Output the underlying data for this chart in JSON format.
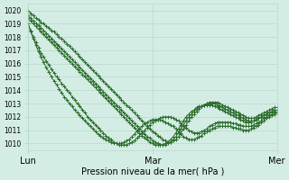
{
  "title": "Pression niveau de la mer( hPa )",
  "bg_color": "#d4ede4",
  "grid_color": "#b8d8cc",
  "line_color": "#2d6e2d",
  "ylim": [
    1009.5,
    1020.5
  ],
  "yticks": [
    1010,
    1011,
    1012,
    1013,
    1014,
    1015,
    1016,
    1017,
    1018,
    1019,
    1020
  ],
  "xtick_labels": [
    "Lun",
    "Mar",
    "Mer"
  ],
  "xtick_positions": [
    0,
    48,
    96
  ],
  "total_points": 97,
  "series": [
    [
      1020.0,
      1019.8,
      1019.6,
      1019.4,
      1019.3,
      1019.1,
      1019.0,
      1018.8,
      1018.7,
      1018.5,
      1018.4,
      1018.2,
      1018.0,
      1017.9,
      1017.7,
      1017.5,
      1017.3,
      1017.1,
      1016.9,
      1016.7,
      1016.5,
      1016.3,
      1016.1,
      1015.9,
      1015.7,
      1015.5,
      1015.3,
      1015.1,
      1014.9,
      1014.7,
      1014.5,
      1014.3,
      1014.1,
      1013.9,
      1013.7,
      1013.5,
      1013.3,
      1013.1,
      1012.9,
      1012.7,
      1012.5,
      1012.3,
      1012.1,
      1011.9,
      1011.7,
      1011.5,
      1011.3,
      1011.1,
      1010.9,
      1010.8,
      1010.6,
      1010.5,
      1010.3,
      1010.2,
      1010.1,
      1010.1,
      1010.2,
      1010.3,
      1010.5,
      1010.8,
      1011.1,
      1011.4,
      1011.7,
      1012.0,
      1012.2,
      1012.4,
      1012.6,
      1012.8,
      1012.9,
      1013.0,
      1013.1,
      1013.1,
      1013.1,
      1013.1,
      1013.0,
      1012.9,
      1012.8,
      1012.7,
      1012.6,
      1012.5,
      1012.4,
      1012.3,
      1012.2,
      1012.1,
      1012.0,
      1011.9,
      1011.9,
      1011.9,
      1012.0,
      1012.1,
      1012.2,
      1012.3,
      1012.4,
      1012.5,
      1012.6,
      1012.7,
      1012.7
    ],
    [
      1019.6,
      1019.4,
      1019.2,
      1019.0,
      1018.9,
      1018.7,
      1018.5,
      1018.3,
      1018.1,
      1017.9,
      1017.7,
      1017.5,
      1017.3,
      1017.1,
      1016.9,
      1016.7,
      1016.5,
      1016.3,
      1016.1,
      1015.9,
      1015.7,
      1015.5,
      1015.3,
      1015.1,
      1014.9,
      1014.7,
      1014.5,
      1014.3,
      1014.1,
      1013.9,
      1013.7,
      1013.5,
      1013.3,
      1013.1,
      1012.9,
      1012.7,
      1012.5,
      1012.3,
      1012.1,
      1011.9,
      1011.7,
      1011.5,
      1011.3,
      1011.1,
      1010.9,
      1010.7,
      1010.5,
      1010.4,
      1010.2,
      1010.1,
      1010.0,
      1009.9,
      1009.9,
      1009.9,
      1010.0,
      1010.1,
      1010.3,
      1010.5,
      1010.8,
      1011.1,
      1011.4,
      1011.7,
      1012.0,
      1012.2,
      1012.4,
      1012.6,
      1012.7,
      1012.8,
      1012.9,
      1013.0,
      1013.0,
      1013.0,
      1013.0,
      1012.9,
      1012.8,
      1012.7,
      1012.6,
      1012.5,
      1012.4,
      1012.3,
      1012.2,
      1012.1,
      1012.0,
      1011.9,
      1011.8,
      1011.7,
      1011.7,
      1011.7,
      1011.8,
      1011.9,
      1012.0,
      1012.1,
      1012.2,
      1012.3,
      1012.4,
      1012.5,
      1012.5
    ],
    [
      1019.4,
      1019.2,
      1019.0,
      1018.8,
      1018.6,
      1018.4,
      1018.2,
      1018.0,
      1017.8,
      1017.6,
      1017.4,
      1017.2,
      1017.0,
      1016.8,
      1016.6,
      1016.4,
      1016.2,
      1016.0,
      1015.8,
      1015.6,
      1015.4,
      1015.2,
      1015.0,
      1014.8,
      1014.6,
      1014.4,
      1014.2,
      1014.0,
      1013.8,
      1013.6,
      1013.4,
      1013.2,
      1013.0,
      1012.8,
      1012.6,
      1012.4,
      1012.2,
      1012.0,
      1011.8,
      1011.6,
      1011.4,
      1011.2,
      1011.0,
      1010.8,
      1010.6,
      1010.4,
      1010.3,
      1010.1,
      1010.0,
      1009.9,
      1009.9,
      1009.9,
      1009.9,
      1010.0,
      1010.1,
      1010.3,
      1010.5,
      1010.8,
      1011.1,
      1011.4,
      1011.7,
      1012.0,
      1012.2,
      1012.4,
      1012.5,
      1012.7,
      1012.8,
      1012.8,
      1012.9,
      1012.9,
      1012.9,
      1012.9,
      1012.8,
      1012.7,
      1012.6,
      1012.5,
      1012.4,
      1012.3,
      1012.2,
      1012.1,
      1012.0,
      1011.9,
      1011.8,
      1011.7,
      1011.6,
      1011.6,
      1011.6,
      1011.7,
      1011.8,
      1011.9,
      1012.0,
      1012.1,
      1012.2,
      1012.3,
      1012.4,
      1012.4,
      1012.5
    ],
    [
      1019.0,
      1018.5,
      1018.0,
      1017.6,
      1017.2,
      1016.8,
      1016.5,
      1016.2,
      1015.9,
      1015.6,
      1015.3,
      1015.0,
      1014.8,
      1014.5,
      1014.3,
      1014.0,
      1013.8,
      1013.5,
      1013.3,
      1013.0,
      1012.8,
      1012.5,
      1012.3,
      1012.0,
      1011.8,
      1011.6,
      1011.4,
      1011.2,
      1011.0,
      1010.8,
      1010.6,
      1010.4,
      1010.3,
      1010.1,
      1010.0,
      1009.9,
      1009.9,
      1009.9,
      1009.9,
      1010.0,
      1010.1,
      1010.2,
      1010.4,
      1010.6,
      1010.8,
      1011.0,
      1011.2,
      1011.4,
      1011.6,
      1011.7,
      1011.8,
      1011.9,
      1012.0,
      1012.0,
      1012.0,
      1012.0,
      1011.9,
      1011.8,
      1011.7,
      1011.5,
      1011.3,
      1011.2,
      1011.0,
      1010.9,
      1010.8,
      1010.8,
      1010.8,
      1010.9,
      1011.0,
      1011.1,
      1011.3,
      1011.4,
      1011.5,
      1011.6,
      1011.6,
      1011.6,
      1011.6,
      1011.6,
      1011.6,
      1011.5,
      1011.5,
      1011.4,
      1011.4,
      1011.3,
      1011.3,
      1011.3,
      1011.3,
      1011.4,
      1011.5,
      1011.6,
      1011.7,
      1011.9,
      1012.0,
      1012.1,
      1012.2,
      1012.3,
      1012.3
    ],
    [
      1019.0,
      1018.4,
      1017.9,
      1017.4,
      1016.9,
      1016.5,
      1016.1,
      1015.7,
      1015.4,
      1015.0,
      1014.7,
      1014.4,
      1014.1,
      1013.8,
      1013.5,
      1013.3,
      1013.0,
      1012.8,
      1012.5,
      1012.3,
      1012.1,
      1011.9,
      1011.7,
      1011.5,
      1011.3,
      1011.1,
      1010.9,
      1010.7,
      1010.6,
      1010.4,
      1010.3,
      1010.2,
      1010.1,
      1010.0,
      1010.0,
      1010.0,
      1010.0,
      1010.1,
      1010.2,
      1010.3,
      1010.5,
      1010.7,
      1010.9,
      1011.1,
      1011.3,
      1011.5,
      1011.6,
      1011.7,
      1011.8,
      1011.8,
      1011.8,
      1011.8,
      1011.7,
      1011.6,
      1011.5,
      1011.4,
      1011.3,
      1011.1,
      1010.9,
      1010.7,
      1010.5,
      1010.4,
      1010.3,
      1010.3,
      1010.3,
      1010.4,
      1010.5,
      1010.6,
      1010.8,
      1010.9,
      1011.0,
      1011.1,
      1011.2,
      1011.3,
      1011.3,
      1011.3,
      1011.3,
      1011.3,
      1011.3,
      1011.2,
      1011.2,
      1011.1,
      1011.1,
      1011.0,
      1011.0,
      1011.0,
      1011.1,
      1011.2,
      1011.3,
      1011.4,
      1011.6,
      1011.7,
      1011.9,
      1012.0,
      1012.1,
      1012.2,
      1012.3
    ]
  ]
}
